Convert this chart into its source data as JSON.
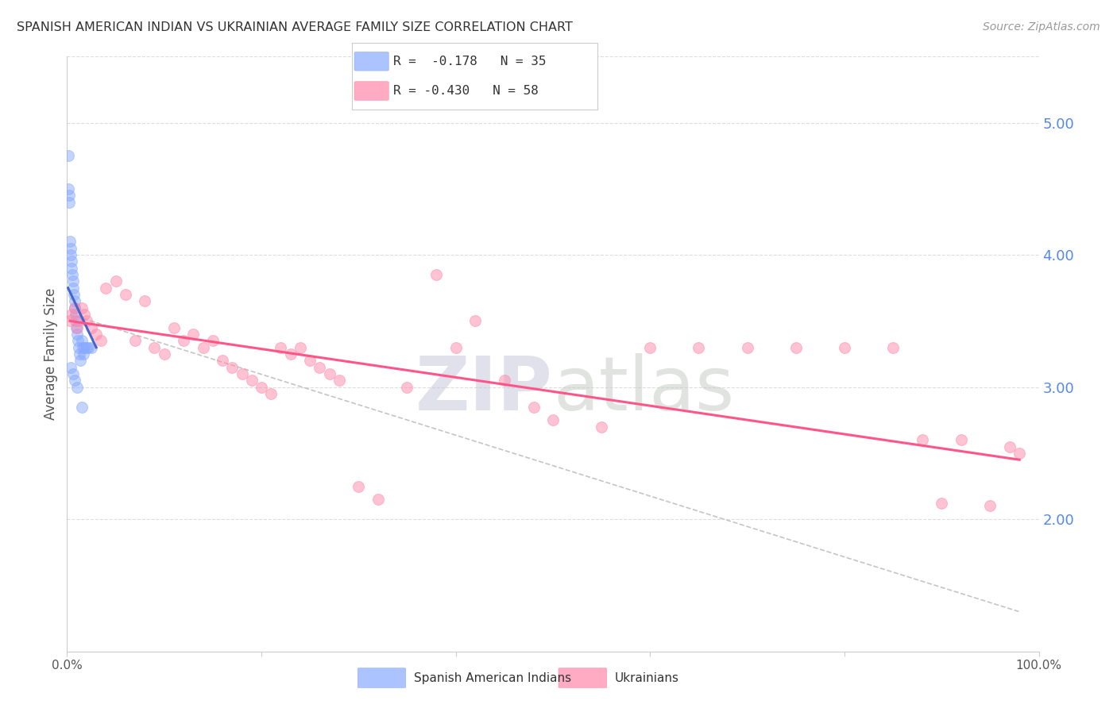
{
  "title": "SPANISH AMERICAN INDIAN VS UKRAINIAN AVERAGE FAMILY SIZE CORRELATION CHART",
  "source": "Source: ZipAtlas.com",
  "ylabel": "Average Family Size",
  "right_yticks": [
    2.0,
    3.0,
    4.0,
    5.0
  ],
  "legend": [
    {
      "label": "R =  -0.178   N = 35",
      "color": "#88AAFF"
    },
    {
      "label": "R = -0.430   N = 58",
      "color": "#FF88AA"
    }
  ],
  "blue_scatter_x": [
    0.1,
    0.15,
    0.2,
    0.25,
    0.3,
    0.35,
    0.4,
    0.45,
    0.5,
    0.55,
    0.6,
    0.65,
    0.7,
    0.75,
    0.8,
    0.85,
    0.9,
    0.95,
    1.0,
    1.1,
    1.2,
    1.3,
    1.4,
    1.5,
    1.6,
    1.7,
    1.8,
    2.0,
    2.2,
    2.5,
    0.4,
    0.6,
    0.8,
    1.0,
    1.5
  ],
  "blue_scatter_y": [
    4.75,
    4.5,
    4.45,
    4.4,
    4.1,
    4.05,
    4.0,
    3.95,
    3.9,
    3.85,
    3.8,
    3.75,
    3.7,
    3.65,
    3.6,
    3.55,
    3.5,
    3.45,
    3.4,
    3.35,
    3.3,
    3.25,
    3.2,
    3.35,
    3.3,
    3.25,
    3.3,
    3.3,
    3.3,
    3.3,
    3.15,
    3.1,
    3.05,
    3.0,
    2.85
  ],
  "pink_scatter_x": [
    0.3,
    0.5,
    0.8,
    1.0,
    1.2,
    1.5,
    1.8,
    2.0,
    2.5,
    3.0,
    3.5,
    4.0,
    5.0,
    6.0,
    7.0,
    8.0,
    9.0,
    10.0,
    11.0,
    12.0,
    13.0,
    14.0,
    15.0,
    16.0,
    17.0,
    18.0,
    19.0,
    20.0,
    21.0,
    22.0,
    23.0,
    24.0,
    25.0,
    26.0,
    27.0,
    28.0,
    30.0,
    32.0,
    35.0,
    38.0,
    40.0,
    42.0,
    45.0,
    48.0,
    50.0,
    55.0,
    60.0,
    65.0,
    70.0,
    75.0,
    80.0,
    85.0,
    88.0,
    90.0,
    92.0,
    95.0,
    97.0,
    98.0
  ],
  "pink_scatter_y": [
    3.5,
    3.55,
    3.6,
    3.45,
    3.5,
    3.6,
    3.55,
    3.5,
    3.45,
    3.4,
    3.35,
    3.75,
    3.8,
    3.7,
    3.35,
    3.65,
    3.3,
    3.25,
    3.45,
    3.35,
    3.4,
    3.3,
    3.35,
    3.2,
    3.15,
    3.1,
    3.05,
    3.0,
    2.95,
    3.3,
    3.25,
    3.3,
    3.2,
    3.15,
    3.1,
    3.05,
    2.25,
    2.15,
    3.0,
    3.85,
    3.3,
    3.5,
    3.05,
    2.85,
    2.75,
    2.7,
    3.3,
    3.3,
    3.3,
    3.3,
    3.3,
    3.3,
    2.6,
    2.12,
    2.6,
    2.1,
    2.55,
    2.5
  ],
  "blue_line_x": [
    0.1,
    3.0
  ],
  "blue_line_y": [
    3.75,
    3.3
  ],
  "pink_line_x": [
    0.3,
    98.0
  ],
  "pink_line_y": [
    3.5,
    2.45
  ],
  "gray_line_x": [
    0.3,
    98.0
  ],
  "gray_line_y": [
    3.55,
    1.3
  ],
  "xlim": [
    0,
    100
  ],
  "ylim": [
    1.0,
    5.5
  ],
  "title_color": "#333333",
  "source_color": "#999999",
  "right_axis_color": "#5588EE",
  "marker_size": 100,
  "blue_color": "#88AAFF",
  "pink_color": "#FF88AA",
  "grid_color": "#DDDDDD",
  "blue_line_color": "#4466CC",
  "pink_line_color": "#FF5588",
  "gray_line_color": "#BBBBBB"
}
